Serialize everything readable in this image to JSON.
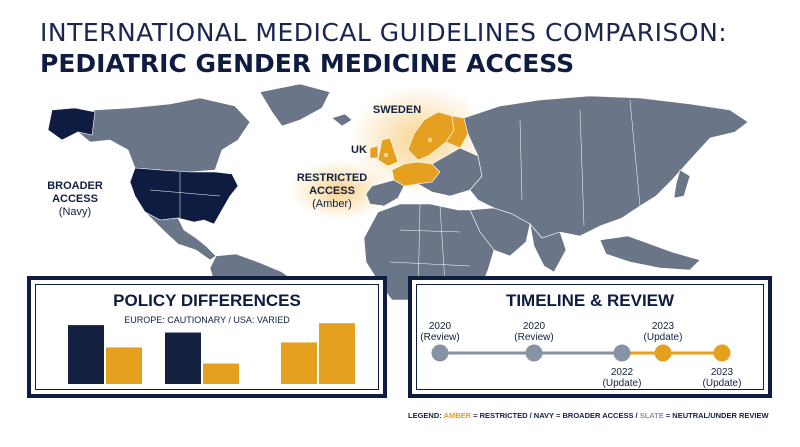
{
  "title": {
    "line1": "INTERNATIONAL MEDICAL GUIDELINES COMPARISON:",
    "line2": "PEDIATRIC GENDER MEDICINE ACCESS"
  },
  "map": {
    "labels": {
      "sweden": "SWEDEN",
      "uk": "UK",
      "restricted_line1": "RESTRICTED",
      "restricted_line2": "ACCESS",
      "restricted_sub": "(Amber)",
      "broader_line1": "BROADER",
      "broader_line2": "ACCESS",
      "broader_sub": "(Navy)"
    },
    "colors": {
      "navy": "#0f1c42",
      "amber": "#e6a020",
      "slate": "#6b7588"
    }
  },
  "policy": {
    "title": "POLICY DIFFERENCES",
    "subtitle": "EUROPE: CAUTIONARY / USA: VARIED"
  },
  "chart_data": {
    "type": "bar",
    "title": "POLICY DIFFERENCES",
    "subtitle": "EUROPE: CAUTIONARY / USA: VARIED",
    "groups": 3,
    "series": [
      {
        "color": "#13203f",
        "values": [
          0.95,
          0.83,
          0
        ]
      },
      {
        "color": "#e6a020",
        "values": [
          0.59,
          0.33,
          0.67,
          0.98
        ]
      }
    ],
    "bars": [
      {
        "group": 1,
        "color": "navy",
        "value": 0.95
      },
      {
        "group": 1,
        "color": "amber",
        "value": 0.59
      },
      {
        "group": 2,
        "color": "navy",
        "value": 0.83
      },
      {
        "group": 2,
        "color": "amber",
        "value": 0.33
      },
      {
        "group": 3,
        "color": "amber",
        "value": 0.67
      },
      {
        "group": 3,
        "color": "amber",
        "value": 0.98
      }
    ]
  },
  "timeline": {
    "title": "TIMELINE & REVIEW",
    "events": [
      {
        "year": "2020",
        "note": "(Review)",
        "color": "slate",
        "label_pos": "above"
      },
      {
        "year": "2020",
        "note": "(Review)",
        "color": "slate",
        "label_pos": "above"
      },
      {
        "year": "2022",
        "note": "(Update)",
        "color": "slate",
        "label_pos": "below"
      },
      {
        "year": "2023",
        "note": "(Update)",
        "color": "amber",
        "label_pos": "above"
      },
      {
        "year": "2023",
        "note": "(Update)",
        "color": "amber",
        "label_pos": "below"
      }
    ]
  },
  "legend": {
    "prefix": "LEGEND: ",
    "amber": "AMBER",
    "amber_text": " = RESTRICTED / ",
    "navy": "NAVY",
    "navy_text": " = BROADER ACCESS / ",
    "slate": "SLATE",
    "slate_text": " = NEUTRAL/UNDER REVIEW"
  }
}
